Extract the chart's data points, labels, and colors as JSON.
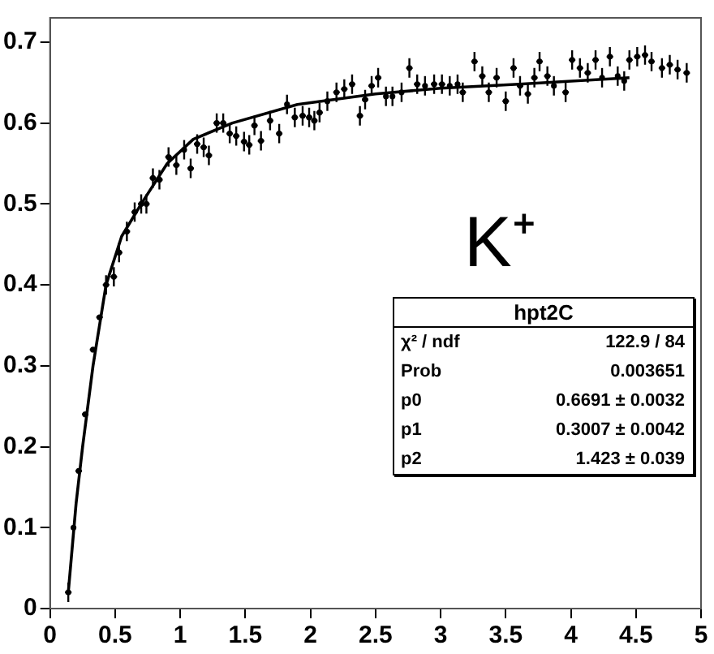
{
  "chart_data": {
    "type": "scatter",
    "xlim": [
      0,
      5
    ],
    "ylim": [
      0,
      0.73
    ],
    "xticks": [
      0,
      0.5,
      1,
      1.5,
      2,
      2.5,
      3,
      3.5,
      4,
      4.5,
      5
    ],
    "yticks": [
      0,
      0.1,
      0.2,
      0.3,
      0.4,
      0.5,
      0.6,
      0.7
    ],
    "grid": false,
    "legend": false,
    "annotations": [
      "K⁺",
      "hpt2C",
      "χ² / ndf",
      "122.9 / 84",
      "Prob",
      "0.003651",
      "p0",
      "0.6691 ± 0.0032",
      "p1",
      "0.3007 ± 0.0042",
      "p2",
      "1.423 ± 0.039"
    ],
    "series": [
      {
        "type": "scatter",
        "color": "#000000",
        "marker": "circle",
        "x": [
          0.14,
          0.18,
          0.22,
          0.27,
          0.33,
          0.38,
          0.43,
          0.49,
          0.53,
          0.59,
          0.65,
          0.7,
          0.74,
          0.79,
          0.84,
          0.91,
          0.97,
          1.03,
          1.08,
          1.13,
          1.18,
          1.22,
          1.28,
          1.33,
          1.38,
          1.43,
          1.49,
          1.53,
          1.57,
          1.62,
          1.69,
          1.76,
          1.82,
          1.88,
          1.94,
          1.99,
          2.03,
          2.07,
          2.13,
          2.2,
          2.26,
          2.32,
          2.38,
          2.42,
          2.47,
          2.52,
          2.58,
          2.63,
          2.7,
          2.76,
          2.82,
          2.88,
          2.95,
          3.01,
          3.07,
          3.13,
          3.17,
          3.26,
          3.32,
          3.37,
          3.43,
          3.5,
          3.56,
          3.61,
          3.67,
          3.72,
          3.76,
          3.82,
          3.87,
          3.96,
          4.01,
          4.07,
          4.13,
          4.19,
          4.24,
          4.3,
          4.36,
          4.41,
          4.45,
          4.51,
          4.57,
          4.62,
          4.7,
          4.76,
          4.82,
          4.89
        ],
        "values": [
          0.02,
          0.1,
          0.17,
          0.24,
          0.32,
          0.36,
          0.4,
          0.41,
          0.44,
          0.466,
          0.49,
          0.5,
          0.5,
          0.532,
          0.53,
          0.558,
          0.548,
          0.567,
          0.544,
          0.574,
          0.57,
          0.56,
          0.6,
          0.6,
          0.587,
          0.584,
          0.577,
          0.573,
          0.597,
          0.578,
          0.603,
          0.587,
          0.623,
          0.607,
          0.609,
          0.607,
          0.603,
          0.613,
          0.627,
          0.638,
          0.642,
          0.648,
          0.609,
          0.629,
          0.646,
          0.656,
          0.633,
          0.633,
          0.638,
          0.668,
          0.648,
          0.646,
          0.648,
          0.648,
          0.646,
          0.648,
          0.638,
          0.676,
          0.658,
          0.638,
          0.656,
          0.627,
          0.668,
          0.646,
          0.636,
          0.656,
          0.676,
          0.658,
          0.646,
          0.638,
          0.678,
          0.668,
          0.662,
          0.678,
          0.656,
          0.682,
          0.658,
          0.652,
          0.678,
          0.682,
          0.684,
          0.676,
          0.668,
          0.672,
          0.666,
          0.662
        ],
        "errors": [
          0.012,
          null,
          null,
          null,
          null,
          null,
          0.012,
          0.012,
          0.012,
          0.012,
          0.012,
          0.012,
          0.012,
          0.012,
          0.012,
          0.012,
          0.012,
          0.012,
          0.012,
          0.012,
          0.012,
          0.012,
          0.012,
          0.012,
          0.012,
          0.012,
          0.012,
          0.012,
          0.012,
          0.012,
          0.012,
          0.012,
          0.012,
          0.012,
          0.012,
          0.012,
          0.012,
          0.012,
          0.012,
          0.012,
          0.012,
          0.012,
          0.012,
          0.012,
          0.012,
          0.012,
          0.012,
          0.012,
          0.012,
          0.012,
          0.012,
          0.012,
          0.012,
          0.012,
          0.012,
          0.012,
          0.012,
          0.012,
          0.012,
          0.012,
          0.012,
          0.012,
          0.012,
          0.012,
          0.012,
          0.012,
          0.012,
          0.012,
          0.012,
          0.012,
          0.012,
          0.012,
          0.012,
          0.012,
          0.012,
          0.012,
          0.012,
          0.012,
          0.012,
          0.012,
          0.012,
          0.012,
          0.012,
          0.012,
          0.012,
          0.012
        ],
        "xerrors": [
          0.025,
          null,
          0.025,
          0.025,
          0.025,
          0.025,
          0.025,
          0.025,
          0.025,
          0.025,
          0.025,
          0.025,
          0.025,
          0.025,
          0.025,
          0.025,
          0.025,
          null,
          0.025,
          0.025,
          0.025,
          0.025,
          0.025,
          0.025,
          0.025,
          0.025,
          0.025,
          0.025,
          0.025,
          0.025,
          0.025,
          0.025,
          null,
          0.025,
          0.025,
          0.025,
          0.025,
          0.025,
          null,
          0.025,
          0.025,
          0.025,
          0.025,
          0.025,
          0.025,
          0.025,
          null,
          null,
          null,
          0.025,
          0.025,
          null,
          0.025,
          0.025,
          null,
          null,
          0.025,
          0.025,
          0.025,
          0.025,
          0.025,
          0.025,
          0.025,
          0.025,
          0.025,
          0.025,
          0.025,
          0.025,
          null,
          0.025,
          0.025,
          0.025,
          0.025,
          0.025,
          null,
          0.025,
          null,
          null,
          0.025,
          0.025,
          0.025,
          0.025,
          0.025,
          0.025,
          0.025,
          0.025
        ]
      },
      {
        "type": "line",
        "color": "#000000",
        "x": [
          0.14,
          0.2,
          0.25,
          0.33,
          0.43,
          0.55,
          0.7,
          0.9,
          1.1,
          1.4,
          1.9,
          2.5,
          3,
          3.6,
          4.45
        ],
        "values": [
          0.02,
          0.13,
          0.2,
          0.3,
          0.4,
          0.46,
          0.5,
          0.55,
          0.58,
          0.6,
          0.623,
          0.636,
          0.643,
          0.648,
          0.656
        ]
      }
    ]
  }
}
